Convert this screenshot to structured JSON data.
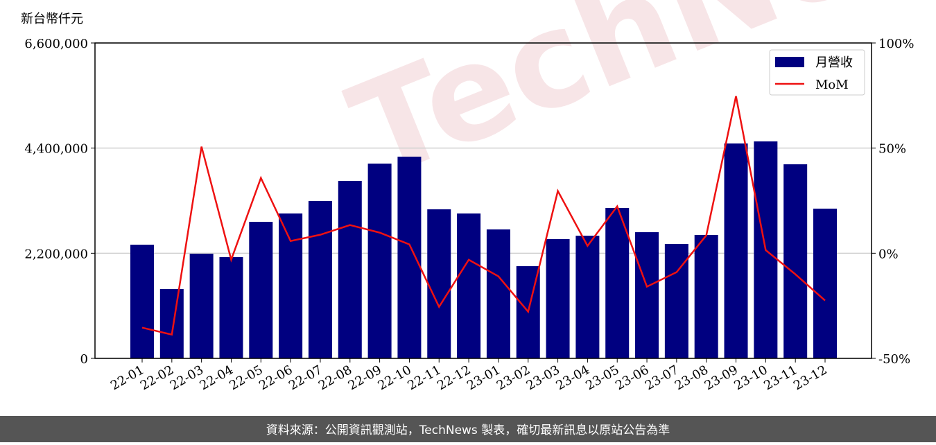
{
  "chart_data": {
    "type": "bar_line",
    "y_axis_label": "新台幣仟元",
    "watermark": "TechNews",
    "footer": "資料來源：公開資訊觀測站，TechNews 製表，確切最新訊息以原站公告為準",
    "categories": [
      "22-01",
      "22-02",
      "22-03",
      "22-04",
      "22-05",
      "22-06",
      "22-07",
      "22-08",
      "22-09",
      "22-10",
      "22-11",
      "22-12",
      "23-01",
      "23-02",
      "23-03",
      "23-04",
      "23-05",
      "23-06",
      "23-07",
      "23-08",
      "23-09",
      "23-10",
      "23-11",
      "23-12"
    ],
    "series": [
      {
        "name": "月營收",
        "kind": "bar",
        "color": "#000080",
        "values": [
          2379000,
          1450000,
          2190000,
          2118000,
          2857000,
          3032000,
          3293000,
          3713000,
          4076000,
          4221000,
          3119000,
          3032000,
          2698000,
          1929000,
          2495000,
          2567000,
          3148000,
          2640000,
          2393000,
          2582000,
          4497000,
          4540000,
          4061000,
          3133000
        ]
      },
      {
        "name": "MoM",
        "kind": "line",
        "axis": "y2",
        "color": "#ee1111",
        "values": [
          -35.4,
          -38.7,
          50.7,
          -3.1,
          35.8,
          5.8,
          8.8,
          13.4,
          9.8,
          4.2,
          -25.5,
          -3.1,
          -11.0,
          -27.8,
          29.6,
          3.5,
          22.3,
          -15.9,
          -9.0,
          8.5,
          74.7,
          1.5,
          -10.0,
          -22.5
        ]
      }
    ],
    "ylim": [
      0,
      6600000
    ],
    "yticks": [
      0,
      {
        "value": 2200000,
        "label": "2,200,000"
      },
      {
        "value": 4400000,
        "label": "4,400,000"
      },
      {
        "value": 6600000,
        "label": "6,600,000"
      }
    ],
    "y2lim": [
      -50,
      100
    ],
    "y2ticks": [
      {
        "value": -50,
        "label": "-50%"
      },
      {
        "value": 0,
        "label": "0%"
      },
      {
        "value": 50,
        "label": "50%"
      },
      {
        "value": 100,
        "label": "100%"
      }
    ],
    "grid": true,
    "legend": "upper right"
  }
}
